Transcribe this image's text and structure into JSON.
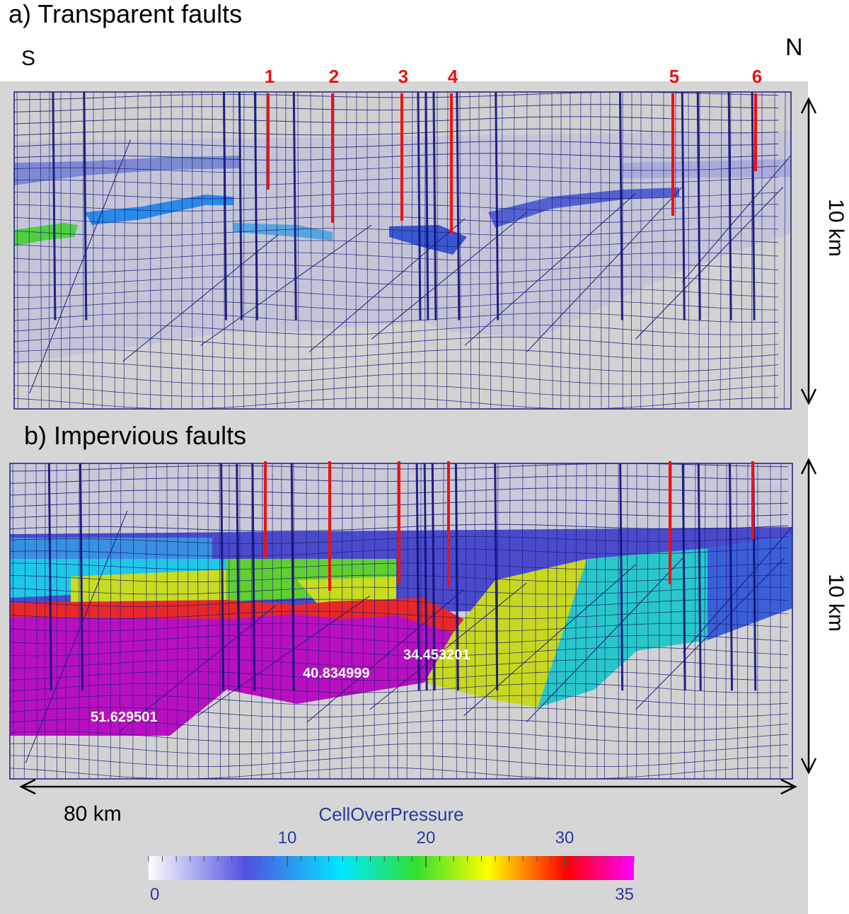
{
  "panel_a": {
    "title": "a) Transparent  faults",
    "south_label": "S",
    "north_label": "N",
    "depth_label": "10 km",
    "faults": [
      {
        "label": "1"
      },
      {
        "label": "2"
      },
      {
        "label": "3"
      },
      {
        "label": "4"
      },
      {
        "label": "5"
      },
      {
        "label": "6"
      }
    ]
  },
  "panel_b": {
    "title": "b) Impervious faults",
    "depth_label": "10 km",
    "value_labels": [
      "51.629501",
      "40.834999",
      "34.453201"
    ]
  },
  "width_label": "80 km",
  "colorbar": {
    "title": "CellOverPressure",
    "min_label": "0",
    "max_label": "35",
    "tick_labels": [
      "10",
      "20",
      "30"
    ],
    "min": 0,
    "max": 35,
    "ticks": [
      10,
      20,
      30
    ],
    "stops": [
      "#ffffff",
      "#5050e0",
      "#00e8ff",
      "#30e030",
      "#ffff00",
      "#ff0000",
      "#ff00ff"
    ],
    "title_color": "#2a3aa0"
  },
  "colors": {
    "mesh": "#1c1c7a",
    "fault_marker": "#ee1111",
    "background": "#d6d6d6",
    "basement": "#d2d2d2"
  }
}
